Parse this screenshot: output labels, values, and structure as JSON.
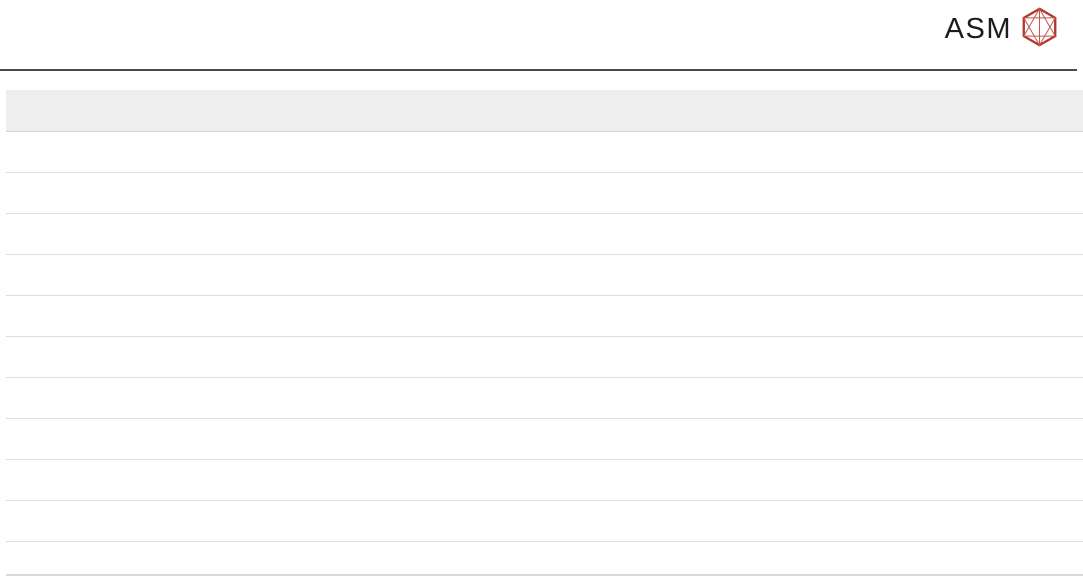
{
  "brand": {
    "name": "ASM",
    "icon": "asm-hexagon-icon",
    "icon_color": "#b5382e",
    "text_color": "#1c1c1e"
  },
  "colors": {
    "background": "#ffffff",
    "header_rule": "#4a4a4a",
    "table_header_bg": "#eeeeee",
    "table_header_border": "#d5d5d5",
    "row_divider": "#dddddd",
    "table_bottom_border": "#d9d9d9"
  },
  "table": {
    "header": {
      "label": ""
    },
    "rows": [
      {
        "text": ""
      },
      {
        "text": ""
      },
      {
        "text": ""
      },
      {
        "text": ""
      },
      {
        "text": ""
      },
      {
        "text": ""
      },
      {
        "text": ""
      },
      {
        "text": ""
      },
      {
        "text": ""
      },
      {
        "text": ""
      },
      {
        "text": ""
      }
    ]
  }
}
